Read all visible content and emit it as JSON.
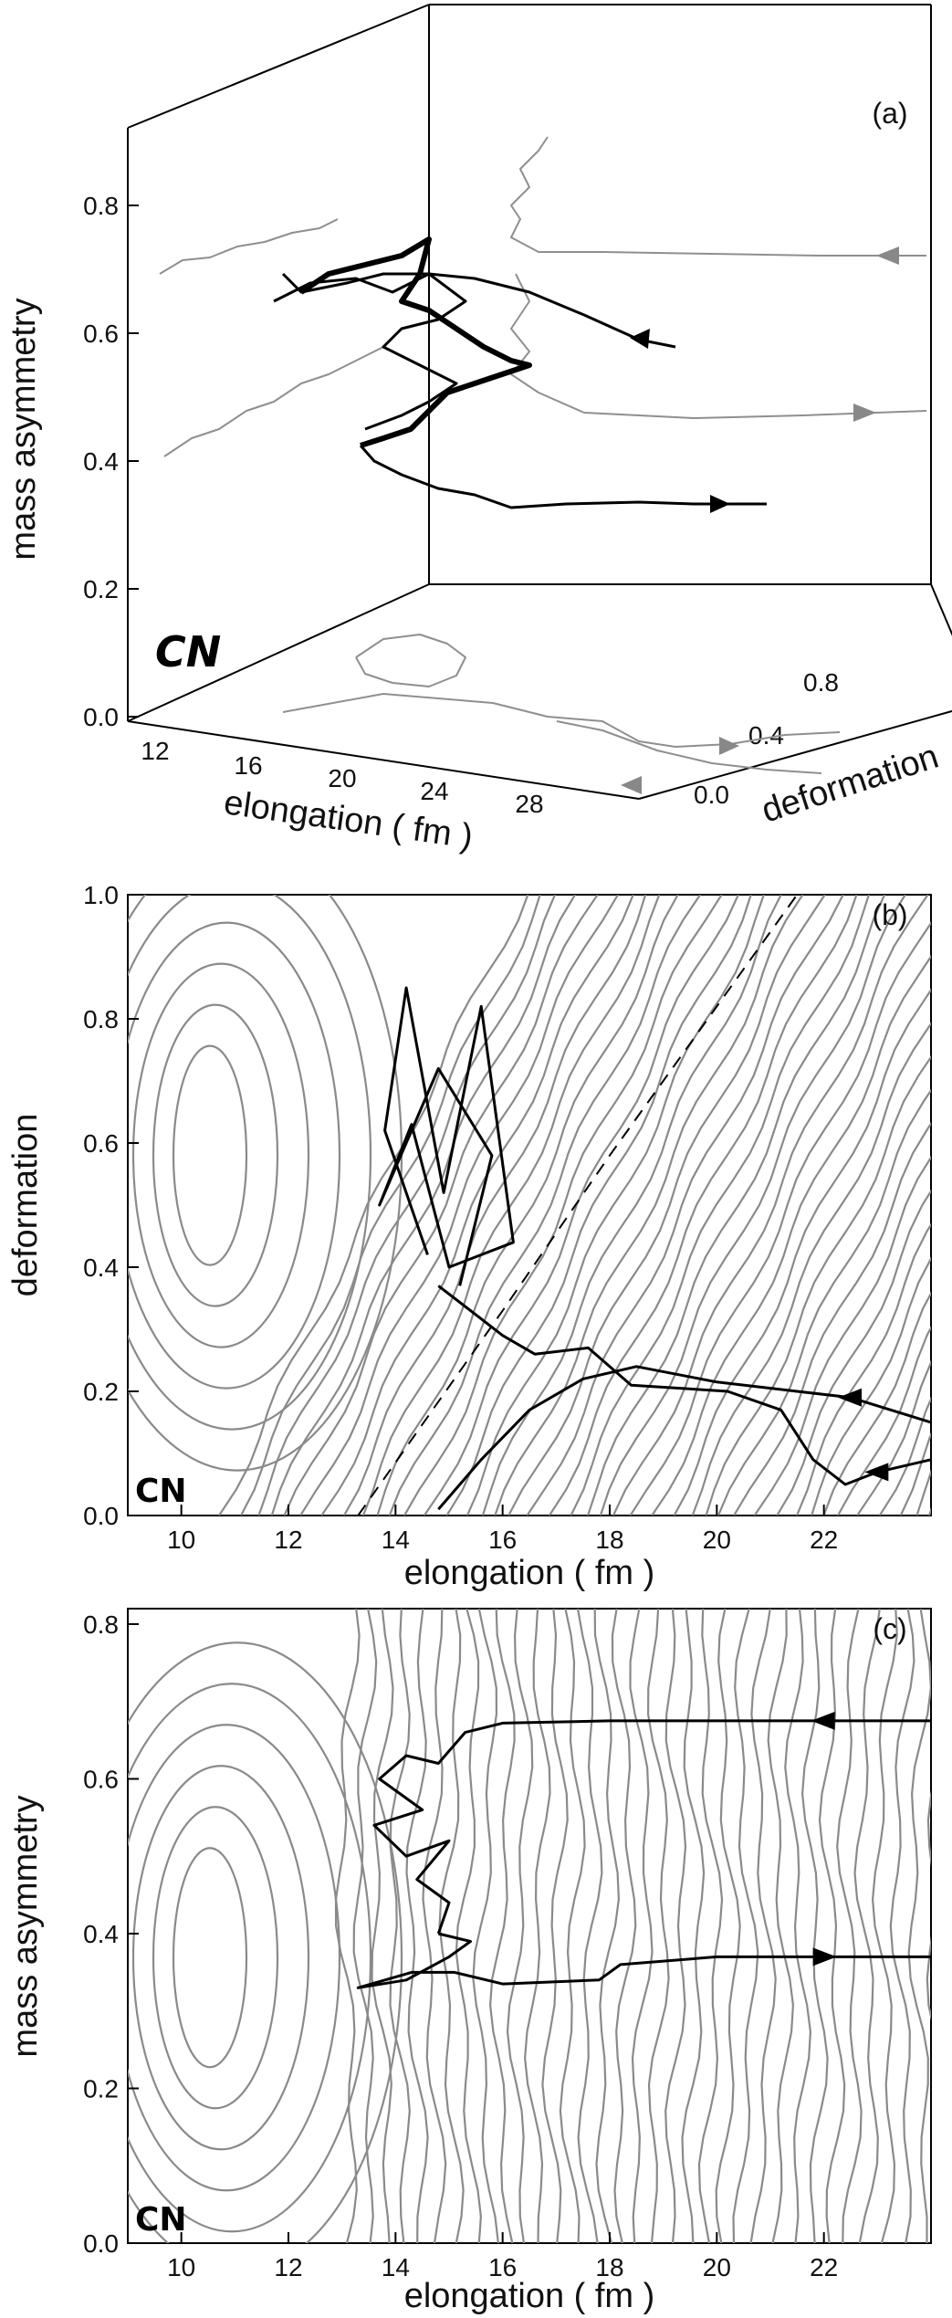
{
  "chart_data": [
    {
      "panel": "(a)",
      "type": "line",
      "kind": "3d-trajectory",
      "tag": "CN",
      "xlabel": "elongation ( fm )",
      "ylabel": "mass asymmetry",
      "zlabel": "deformation",
      "x_ticks": [
        "12",
        "16",
        "20",
        "24",
        "28"
      ],
      "y_ticks": [
        "0.0",
        "0.2",
        "0.4",
        "0.6",
        "0.8"
      ],
      "z_ticks": [
        "0.0",
        "0.4",
        "0.8"
      ],
      "series": [
        {
          "role": "trajectory",
          "color": "#000000",
          "points": [
            [
              29,
              0.25,
              0.34
            ],
            [
              25,
              0.24,
              0.34
            ],
            [
              21,
              0.3,
              0.33
            ],
            [
              18,
              0.35,
              0.36
            ],
            [
              17.5,
              0.4,
              0.42
            ],
            [
              16.5,
              0.45,
              0.46
            ],
            [
              15.5,
              0.5,
              0.52
            ],
            [
              15,
              0.55,
              0.58
            ],
            [
              15.2,
              0.6,
              0.64
            ],
            [
              15.8,
              0.45,
              0.66
            ],
            [
              18,
              0.28,
              0.66
            ],
            [
              22,
              0.22,
              0.64
            ],
            [
              27,
              0.18,
              0.6
            ]
          ]
        }
      ]
    },
    {
      "panel": "(b)",
      "type": "line",
      "kind": "trajectory-on-contour",
      "tag": "CN",
      "xlabel": "elongation ( fm )",
      "ylabel": "deformation",
      "xlim": [
        9,
        24
      ],
      "ylim": [
        0,
        1.0
      ],
      "x_ticks": [
        "10",
        "12",
        "14",
        "16",
        "18",
        "20",
        "22"
      ],
      "y_ticks": [
        "0.0",
        "0.2",
        "0.4",
        "0.6",
        "0.8",
        "1.0"
      ],
      "series": [
        {
          "role": "dashed-ridge",
          "points": [
            [
              13.3,
              0.0
            ],
            [
              16.0,
              0.33
            ],
            [
              18.0,
              0.58
            ],
            [
              20.0,
              0.82
            ],
            [
              21.5,
              1.0
            ]
          ]
        },
        {
          "role": "trajectory-incoming",
          "points": [
            [
              24,
              0.15
            ],
            [
              22.5,
              0.19
            ],
            [
              21.5,
              0.2
            ],
            [
              20,
              0.215
            ],
            [
              18.5,
              0.24
            ],
            [
              17.5,
              0.22
            ],
            [
              16.5,
              0.17
            ],
            [
              15.6,
              0.09
            ],
            [
              14.8,
              0.01
            ]
          ]
        },
        {
          "role": "trajectory-exit",
          "points": [
            [
              24,
              0.09
            ],
            [
              23,
              0.07
            ],
            [
              22.4,
              0.05
            ],
            [
              21.8,
              0.09
            ],
            [
              21.2,
              0.17
            ],
            [
              20.2,
              0.2
            ],
            [
              18.4,
              0.21
            ],
            [
              17.6,
              0.27
            ],
            [
              16.6,
              0.26
            ],
            [
              16.0,
              0.29
            ],
            [
              15.4,
              0.33
            ],
            [
              14.8,
              0.37
            ]
          ]
        },
        {
          "role": "trajectory-fluctuation",
          "points": [
            [
              14.6,
              0.42
            ],
            [
              13.8,
              0.62
            ],
            [
              14.2,
              0.85
            ],
            [
              14.9,
              0.52
            ],
            [
              15.6,
              0.82
            ],
            [
              16.2,
              0.44
            ],
            [
              15.0,
              0.4
            ],
            [
              14.3,
              0.63
            ],
            [
              13.7,
              0.5
            ],
            [
              14.8,
              0.72
            ],
            [
              15.8,
              0.58
            ],
            [
              15.2,
              0.37
            ]
          ]
        }
      ]
    },
    {
      "panel": "(c)",
      "type": "line",
      "kind": "trajectory-on-contour",
      "tag": "CN",
      "xlabel": "elongation ( fm )",
      "ylabel": "mass asymmetry",
      "xlim": [
        9,
        24
      ],
      "ylim": [
        0,
        0.82
      ],
      "x_ticks": [
        "10",
        "12",
        "14",
        "16",
        "18",
        "20",
        "22"
      ],
      "y_ticks": [
        "0.0",
        "0.2",
        "0.4",
        "0.6",
        "0.8"
      ],
      "series": [
        {
          "role": "trajectory-upper",
          "points": [
            [
              24,
              0.675
            ],
            [
              22,
              0.675
            ],
            [
              20,
              0.675
            ],
            [
              18,
              0.675
            ],
            [
              16,
              0.672
            ],
            [
              15.3,
              0.66
            ],
            [
              14.8,
              0.62
            ],
            [
              14.2,
              0.63
            ],
            [
              13.7,
              0.6
            ],
            [
              14.5,
              0.56
            ],
            [
              13.6,
              0.54
            ],
            [
              14.2,
              0.5
            ],
            [
              15.0,
              0.52
            ],
            [
              14.4,
              0.47
            ],
            [
              15.0,
              0.44
            ],
            [
              14.8,
              0.4
            ]
          ]
        },
        {
          "role": "trajectory-lower",
          "points": [
            [
              24,
              0.37
            ],
            [
              22,
              0.37
            ],
            [
              20,
              0.37
            ],
            [
              18.2,
              0.36
            ],
            [
              17.8,
              0.34
            ],
            [
              16,
              0.335
            ],
            [
              15.1,
              0.35
            ],
            [
              14.3,
              0.35
            ],
            [
              13.3,
              0.33
            ],
            [
              14.2,
              0.34
            ],
            [
              15.0,
              0.37
            ],
            [
              15.4,
              0.39
            ],
            [
              14.8,
              0.4
            ]
          ]
        }
      ]
    }
  ],
  "colors": {
    "trajectory": "#000000",
    "contour": "#8a8a8a",
    "projection": "#8f8f8f"
  }
}
